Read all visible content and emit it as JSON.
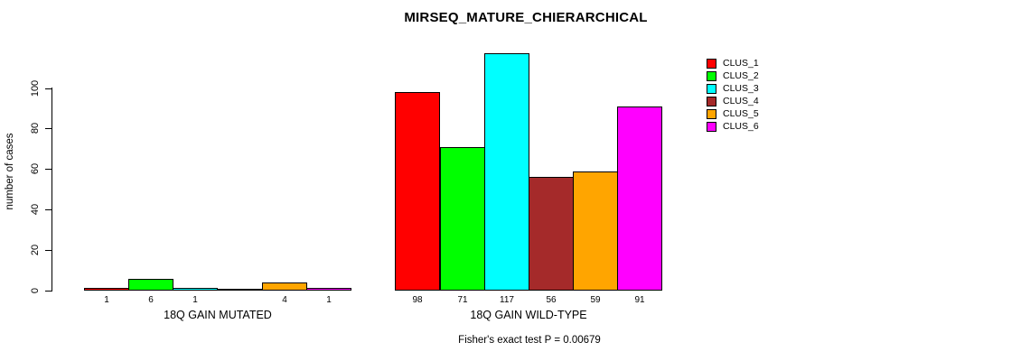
{
  "chart_data": {
    "type": "bar",
    "title": "MIRSEQ_MATURE_CHIERARCHICAL",
    "ylabel": "number of cases",
    "xlabel": "",
    "ylim": [
      0,
      117
    ],
    "yticks": [
      0,
      20,
      40,
      60,
      80,
      100
    ],
    "grid": false,
    "legend_position": "right-outside",
    "series_names": [
      "CLUS_1",
      "CLUS_2",
      "CLUS_3",
      "CLUS_4",
      "CLUS_5",
      "CLUS_6"
    ],
    "colors": [
      "#FF0000",
      "#00FF00",
      "#00FFFF",
      "#A52A2A",
      "#FFA500",
      "#FF00FF"
    ],
    "groups": [
      {
        "label": "18Q GAIN MUTATED",
        "values": [
          1,
          6,
          1,
          0,
          4,
          1
        ],
        "bar_labels": [
          "1",
          "6",
          "1",
          "",
          "4",
          "1"
        ]
      },
      {
        "label": "18Q GAIN WILD-TYPE",
        "values": [
          98,
          71,
          117,
          56,
          59,
          91
        ],
        "bar_labels": [
          "98",
          "71",
          "117",
          "56",
          "59",
          "91"
        ]
      }
    ],
    "annotation": "Fisher's exact test P = 0.00679"
  }
}
